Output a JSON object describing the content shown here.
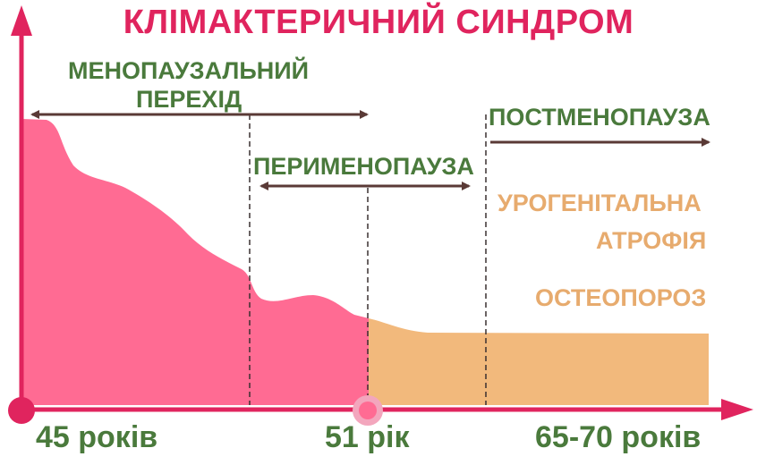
{
  "title": "КЛІМАКТЕРИЧНИЙ СИНДРОМ",
  "phases": {
    "menopausal_transition": [
      "МЕНОПАУЗАЛЬНИЙ",
      "ПЕРЕХІД"
    ],
    "perimenopause": "ПЕРИМЕНОПАУЗА",
    "postmenopause": "ПОСТМЕНОПАУЗА"
  },
  "conditions": {
    "urogenital_atrophy": [
      "УРОГЕНІТАЛЬНА",
      "АТРОФІЯ"
    ],
    "osteoporosis": "ОСТЕОПОРОЗ"
  },
  "age_ticks": [
    "45 років",
    "51 рік",
    "65-70 років"
  ],
  "colors": {
    "title": "#e0245e",
    "axis": "#e0245e",
    "phase_text": "#4a7a3c",
    "condition_text": "#e7ab6e",
    "pink_area": "#ff6b93",
    "orange_area": "#f2b97c",
    "arrow": "#5a3a36",
    "dash": "#3a3030"
  }
}
